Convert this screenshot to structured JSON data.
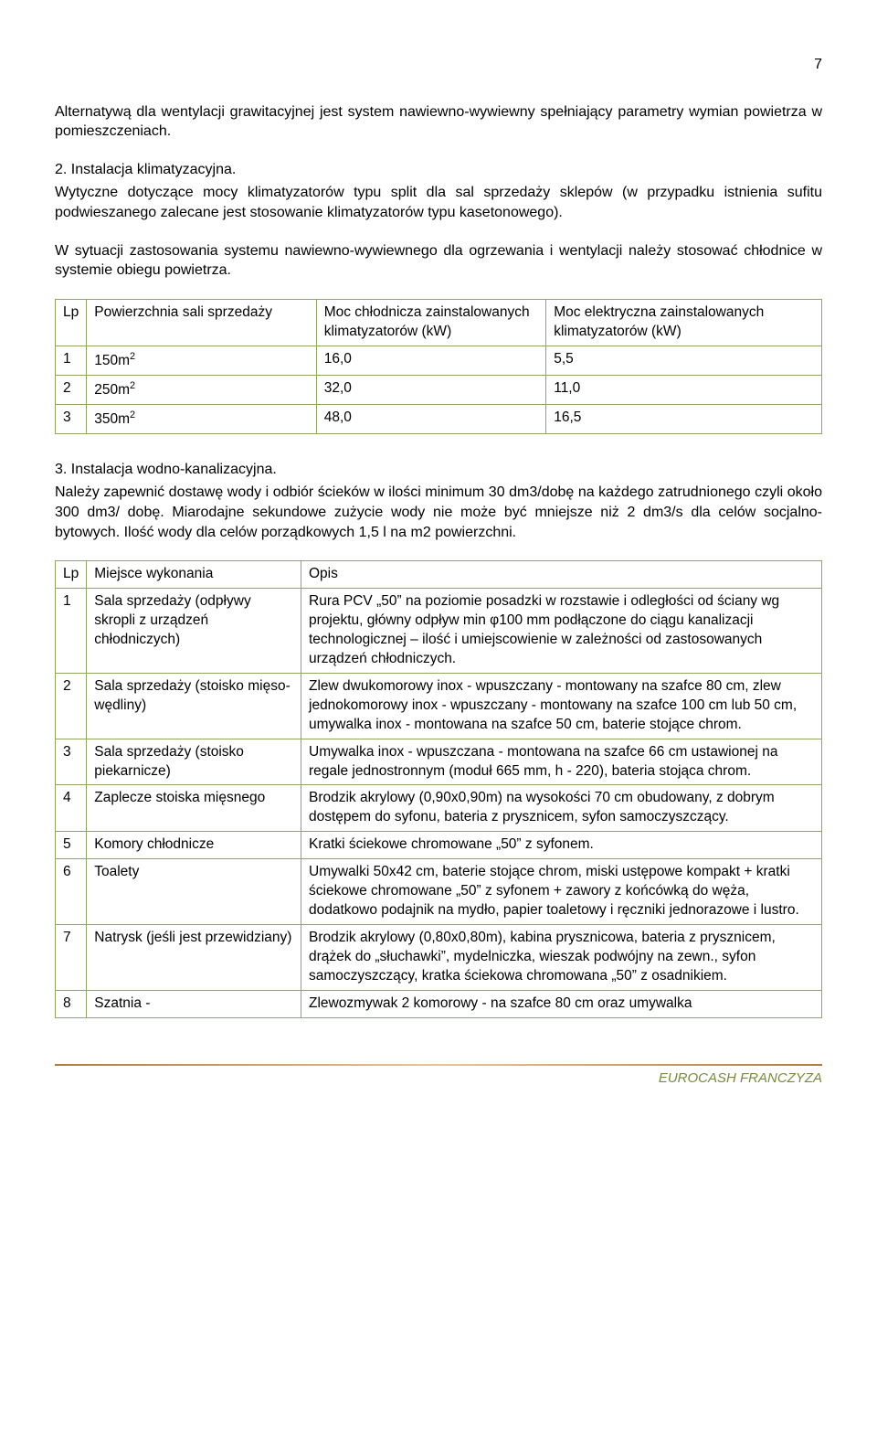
{
  "page_number": "7",
  "para1": "Alternatywą dla wentylacji grawitacyjnej jest system nawiewno-wywiewny spełniający parametry wymian powietrza w pomieszczeniach.",
  "section2_label": "2.      Instalacja klimatyzacyjna.",
  "para2": "Wytyczne dotyczące mocy klimatyzatorów typu split dla sal sprzedaży sklepów (w przypadku istnienia sufitu podwieszanego zalecane jest stosowanie klimatyzatorów typu kasetonowego).",
  "para3": "W sytuacji zastosowania systemu nawiewno-wywiewnego dla ogrzewania i wentylacji należy stosować chłodnice w systemie obiegu powietrza.",
  "table1": {
    "headers": {
      "lp": "Lp",
      "col1": "Powierzchnia sali sprzedaży",
      "col2": "Moc chłodnicza zainstalowanych klimatyzatorów (kW)",
      "col3": "Moc elektryczna zainstalowanych klimatyzatorów (kW)"
    },
    "rows": [
      {
        "lp": "1",
        "c1_val": "150m",
        "c1_sup": "2",
        "c2": "16,0",
        "c3": "5,5"
      },
      {
        "lp": "2",
        "c1_val": "250m",
        "c1_sup": "2",
        "c2": "32,0",
        "c3": "11,0"
      },
      {
        "lp": "3",
        "c1_val": "350m",
        "c1_sup": "2",
        "c2": "48,0",
        "c3": "16,5"
      }
    ]
  },
  "section3_label": "3.      Instalacja wodno-kanalizacyjna.",
  "para4": "Należy zapewnić dostawę wody i odbiór ścieków w ilości minimum 30 dm3/dobę na każdego zatrudnionego czyli około 300 dm3/ dobę. Miarodajne sekundowe zużycie wody nie może być mniejsze niż 2 dm3/s dla celów socjalno-bytowych. Ilość wody dla celów porządkowych 1,5 l na m2 powierzchni.",
  "table2": {
    "headers": {
      "lp": "Lp",
      "col1": "Miejsce wykonania",
      "col2": "Opis"
    },
    "rows": [
      {
        "lp": "1",
        "c1": "Sala sprzedaży (odpływy skropli z urządzeń chłodniczych)",
        "c2": "Rura PCV „50” na poziomie posadzki w rozstawie i odległości od ściany wg projektu, główny odpływ min φ100 mm podłączone do ciągu kanalizacji technologicznej – ilość i umiejscowienie w zależności od zastosowanych urządzeń chłodniczych."
      },
      {
        "lp": "2",
        "c1": "Sala sprzedaży (stoisko mięso-wędliny)",
        "c2": "Zlew dwukomorowy inox - wpuszczany - montowany na szafce 80 cm, zlew jednokomorowy inox - wpuszczany - montowany na szafce 100 cm lub 50 cm, umywalka inox - montowana na szafce 50 cm, baterie stojące chrom."
      },
      {
        "lp": "3",
        "c1": "Sala sprzedaży (stoisko piekarnicze)",
        "c2": "Umywalka inox  - wpuszczana - montowana na szafce 66 cm ustawionej na regale jednostronnym (moduł 665 mm, h - 220), bateria stojąca chrom."
      },
      {
        "lp": "4",
        "c1": "Zaplecze stoiska mięsnego",
        "c2": "Brodzik akrylowy (0,90x0,90m) na wysokości 70 cm obudowany, z dobrym dostępem do syfonu, bateria z prysznicem, syfon samoczyszczący."
      },
      {
        "lp": "5",
        "c1": "Komory chłodnicze",
        "c2": "Kratki ściekowe chromowane „50” z syfonem."
      },
      {
        "lp": "6",
        "c1": "Toalety",
        "c2": "Umywalki 50x42 cm, baterie stojące chrom, miski ustępowe kompakt + kratki ściekowe chromowane „50” z syfonem + zawory z końcówką do węża, dodatkowo podajnik na mydło, papier toaletowy i ręczniki jednorazowe i lustro."
      },
      {
        "lp": "7",
        "c1": "Natrysk (jeśli jest przewidziany)",
        "c2": "Brodzik akrylowy (0,80x0,80m), kabina prysznicowa, bateria z prysznicem, drążek do „słuchawki”, mydelniczka, wieszak podwójny na zewn., syfon samoczyszczący, kratka ściekowa chromowana „50” z osadnikiem."
      },
      {
        "lp": "8",
        "c1": "Szatnia -",
        "c2": "Zlewozmywak 2 komorowy - na szafce 80 cm oraz umywalka"
      }
    ]
  },
  "footer": "EUROCASH FRANCZYZA"
}
